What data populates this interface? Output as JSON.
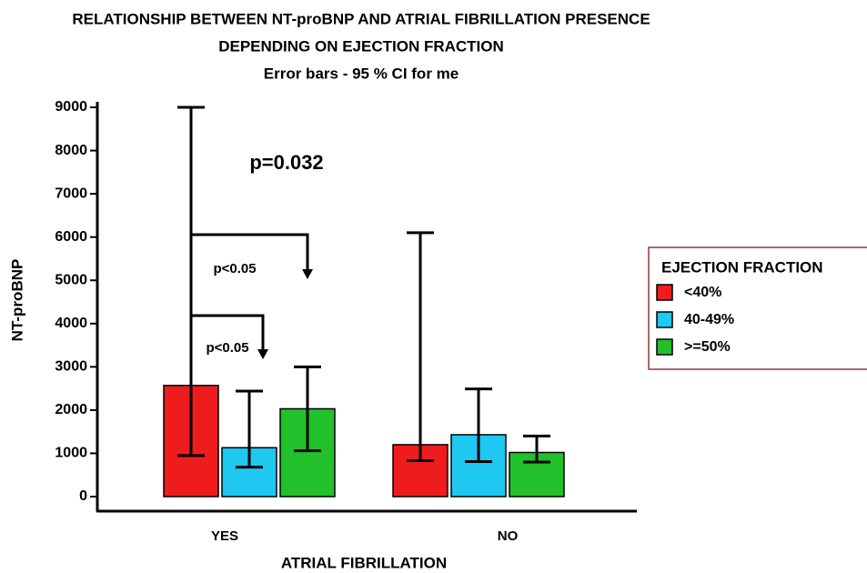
{
  "chart_data": {
    "type": "bar",
    "title": [
      "RELATIONSHIP BETWEEN NT-proBNP AND ATRIAL FIBRILLATION PRESENCE",
      "DEPENDING ON EJECTION FRACTION",
      "Error bars - 95 % CI for me"
    ],
    "x_label": "ATRIAL FIBRILLATION",
    "y_label": "NT-proBNP",
    "categories": [
      "YES",
      "NO"
    ],
    "legend_title": "EJECTION FRACTION",
    "series": [
      {
        "name": "<40%",
        "color": "#ee1c1c",
        "values": [
          2570,
          1200
        ],
        "ci_low": [
          950,
          830
        ],
        "ci_high": [
          9000,
          6100
        ]
      },
      {
        "name": "40-49%",
        "color": "#1ec8f0",
        "values": [
          1130,
          1430
        ],
        "ci_low": [
          680,
          810
        ],
        "ci_high": [
          2440,
          2490
        ]
      },
      {
        "name": ">=50%",
        "color": "#22c02a",
        "values": [
          2030,
          1020
        ],
        "ci_low": [
          1060,
          800
        ],
        "ci_high": [
          3000,
          1400
        ]
      }
    ],
    "ylim": [
      0,
      9000
    ],
    "yticks": [
      0,
      1000,
      2000,
      3000,
      4000,
      5000,
      6000,
      7000,
      8000,
      9000
    ],
    "annotations": [
      "p=0.032",
      "p<0.05",
      "p<0.05"
    ]
  }
}
